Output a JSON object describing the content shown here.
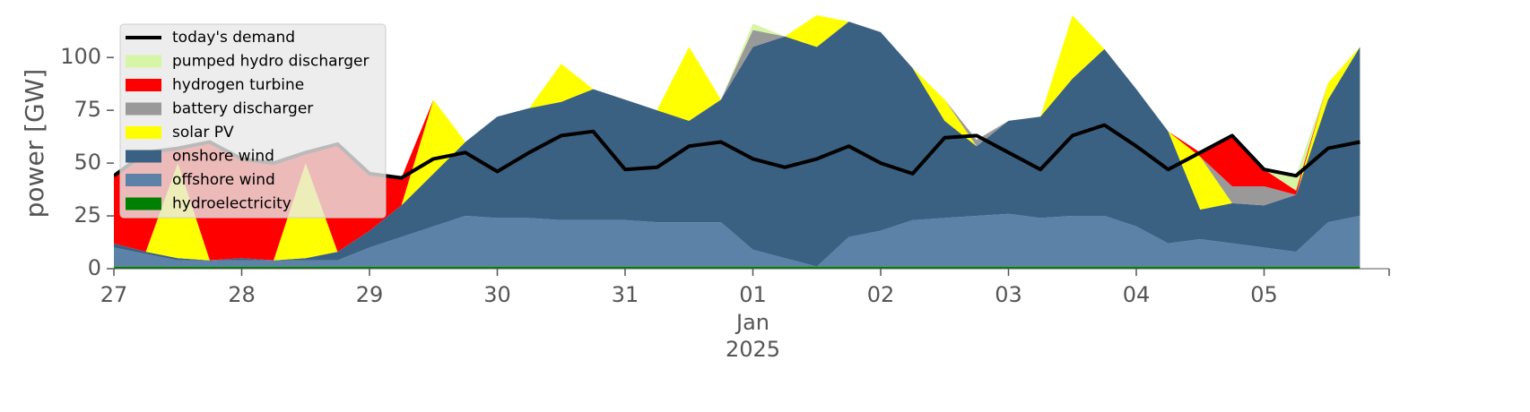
{
  "chart_data": {
    "type": "stacked_area",
    "y_label": "power [GW]",
    "categories": [
      "27",
      null,
      null,
      null,
      "28",
      null,
      null,
      null,
      "29",
      null,
      null,
      null,
      "30",
      null,
      null,
      null,
      "31",
      null,
      null,
      null,
      "01",
      null,
      null,
      null,
      "02",
      null,
      null,
      null,
      "03",
      null,
      null,
      null,
      "04",
      null,
      null,
      null,
      "05",
      null,
      null,
      null
    ],
    "x_period_label": [
      "Jan",
      "2025"
    ],
    "ylim": [
      0,
      120
    ],
    "yticks": [
      0,
      25,
      50,
      75,
      100
    ],
    "legend": "upper left",
    "series": [
      {
        "name": "today's demand",
        "type": "line",
        "color": "#000000",
        "values": [
          44,
          55,
          57,
          60,
          52,
          50,
          55,
          59,
          45,
          43,
          52,
          55,
          46,
          55,
          63,
          65,
          47,
          48,
          58,
          60,
          52,
          48,
          52,
          58,
          50,
          45,
          62,
          63,
          55,
          47,
          63,
          68,
          58,
          47,
          55,
          63,
          47,
          44,
          57,
          60
        ]
      },
      {
        "name": "pumped hydro discharger",
        "color": "#d6f5a6",
        "values": [
          0,
          0,
          0,
          0,
          0,
          0,
          0,
          0,
          0,
          0,
          0,
          0,
          0,
          0,
          0,
          0,
          0,
          0,
          0,
          0,
          3,
          0,
          0,
          0,
          0,
          0,
          0,
          0,
          0,
          0,
          0,
          0,
          0,
          0,
          0,
          0,
          0,
          7,
          0,
          0
        ]
      },
      {
        "name": "hydrogen turbine",
        "color": "#ff0000",
        "values": [
          32,
          47,
          7,
          56,
          47,
          46,
          5,
          51,
          27,
          13,
          0,
          0,
          0,
          0,
          0,
          0,
          0,
          0,
          0,
          0,
          0,
          0,
          0,
          0,
          0,
          0,
          0,
          0,
          0,
          0,
          0,
          0,
          0,
          0,
          2,
          24,
          8,
          2,
          0,
          0
        ]
      },
      {
        "name": "battery discharger",
        "color": "#999999",
        "values": [
          0,
          0,
          0,
          0,
          0,
          0,
          0,
          0,
          0,
          0,
          0,
          0,
          0,
          0,
          0,
          0,
          0,
          0,
          0,
          0,
          8,
          0,
          0,
          0,
          0,
          0,
          0,
          3,
          0,
          0,
          0,
          0,
          0,
          0,
          0,
          8,
          9,
          0,
          0,
          0
        ]
      },
      {
        "name": "solar PV",
        "color": "#ffff00",
        "values": [
          0,
          0,
          45,
          0,
          0,
          0,
          45,
          0,
          0,
          0,
          35,
          0,
          0,
          0,
          18,
          0,
          0,
          0,
          35,
          0,
          0,
          0,
          15,
          0,
          0,
          0,
          10,
          0,
          0,
          0,
          30,
          0,
          0,
          0,
          25,
          0,
          0,
          0,
          8,
          0
        ]
      },
      {
        "name": "onshore wind",
        "color": "#3b6182",
        "values": [
          2,
          1,
          1,
          0,
          1,
          0,
          1,
          4,
          8,
          15,
          25,
          35,
          48,
          52,
          56,
          62,
          57,
          53,
          48,
          58,
          96,
          105,
          104,
          102,
          94,
          72,
          46,
          33,
          44,
          48,
          65,
          79,
          65,
          53,
          14,
          19,
          20,
          27,
          58,
          80
        ]
      },
      {
        "name": "offshore wind",
        "color": "#5c82a8",
        "values": [
          9,
          6,
          3,
          3,
          3,
          3,
          3,
          3,
          9,
          14,
          19,
          24,
          23,
          23,
          22,
          22,
          22,
          21,
          21,
          21,
          8,
          4,
          0,
          14,
          17,
          22,
          23,
          24,
          25,
          23,
          24,
          24,
          19,
          11,
          13,
          11,
          9,
          7,
          21,
          24
        ]
      },
      {
        "name": "hydroelectricity",
        "color": "#008000",
        "values": [
          1,
          1,
          1,
          1,
          1,
          1,
          1,
          1,
          1,
          1,
          1,
          1,
          1,
          1,
          1,
          1,
          1,
          1,
          1,
          1,
          1,
          1,
          1,
          1,
          1,
          1,
          1,
          1,
          1,
          1,
          1,
          1,
          1,
          1,
          1,
          1,
          1,
          1,
          1,
          1
        ]
      }
    ]
  }
}
